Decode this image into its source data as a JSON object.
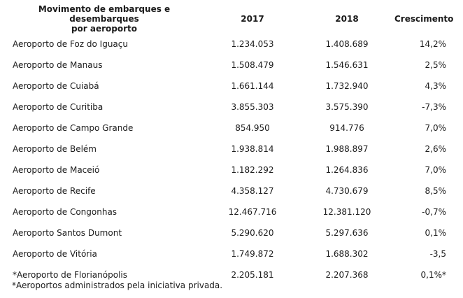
{
  "table": {
    "headers": {
      "name_line1": "Movimento de embarques e desembarques",
      "name_line2": "por aeroporto",
      "year1": "2017",
      "year2": "2018",
      "growth": "Crescimento"
    },
    "rows": [
      {
        "name": "Aeroporto de Foz do Iguaçu",
        "v2017": "1.234.053",
        "v2018": "1.408.689",
        "growth": "14,2%"
      },
      {
        "name": "Aeroporto de Manaus",
        "v2017": "1.508.479",
        "v2018": "1.546.631",
        "growth": "2,5%"
      },
      {
        "name": "Aeroporto de Cuiabá",
        "v2017": "1.661.144",
        "v2018": "1.732.940",
        "growth": "4,3%"
      },
      {
        "name": "Aeroporto de Curitiba",
        "v2017": "3.855.303",
        "v2018": "3.575.390",
        "growth": "-7,3%"
      },
      {
        "name": "Aeroporto de Campo Grande",
        "v2017": "854.950",
        "v2018": "914.776",
        "growth": "7,0%"
      },
      {
        "name": "Aeroporto de Belém",
        "v2017": "1.938.814",
        "v2018": "1.988.897",
        "growth": "2,6%"
      },
      {
        "name": "Aeroporto de Maceió",
        "v2017": "1.182.292",
        "v2018": "1.264.836",
        "growth": "7,0%"
      },
      {
        "name": "Aeroporto de Recife",
        "v2017": "4.358.127",
        "v2018": "4.730.679",
        "growth": "8,5%"
      },
      {
        "name": "Aeroporto de Congonhas",
        "v2017": "12.467.716",
        "v2018": "12.381.120",
        "growth": "-0,7%"
      },
      {
        "name": "Aeroporto Santos Dumont",
        "v2017": "5.290.620",
        "v2018": "5.297.636",
        "growth": "0,1%"
      },
      {
        "name": "Aeroporto de Vitória",
        "v2017": "1.749.872",
        "v2018": "1.688.302",
        "growth": "-3,5"
      },
      {
        "name": "*Aeroporto de Florianópolis",
        "v2017": "2.205.181",
        "v2018": "2.207.368",
        "growth": "0,1%*"
      }
    ]
  },
  "footnote": "*Aeroportos administrados pela iniciativa privada."
}
